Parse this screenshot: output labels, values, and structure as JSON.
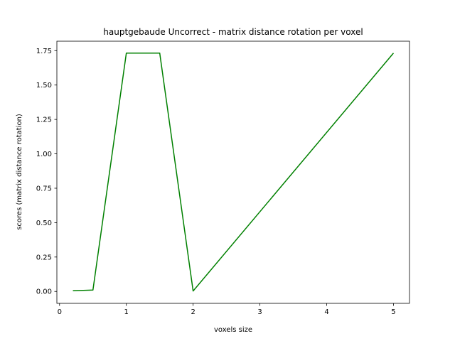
{
  "chart_data": {
    "type": "line",
    "title": "hauptgebaude Uncorrect - matrix distance rotation per voxel",
    "xlabel": "voxels size",
    "ylabel": "scores (matrix distance rotation)",
    "xlim": [
      -0.04,
      5.24
    ],
    "ylim": [
      -0.0866,
      1.8186
    ],
    "x_ticks": [
      0,
      1,
      2,
      3,
      4,
      5
    ],
    "x_tick_labels": [
      "0",
      "1",
      "2",
      "3",
      "4",
      "5"
    ],
    "y_ticks": [
      0.0,
      0.25,
      0.5,
      0.75,
      1.0,
      1.25,
      1.5,
      1.75
    ],
    "y_tick_labels": [
      "0.00",
      "0.25",
      "0.50",
      "0.75",
      "1.00",
      "1.25",
      "1.50",
      "1.75"
    ],
    "grid": false,
    "series": [
      {
        "color": "#008000",
        "x": [
          0.2,
          0.5,
          1.0,
          1.5,
          2.0,
          5.0
        ],
        "y": [
          0.005,
          0.01,
          1.732,
          1.732,
          0.003,
          1.732
        ]
      }
    ]
  }
}
